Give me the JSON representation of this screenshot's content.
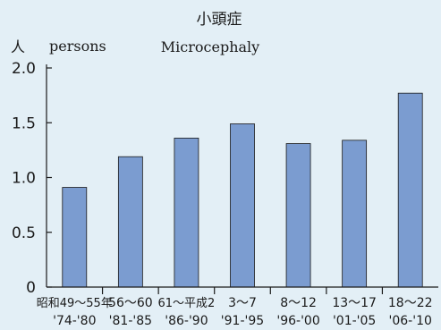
{
  "chart_data": {
    "type": "bar",
    "title": "小頭症",
    "subtitle": "Microcephaly",
    "ylabel_ja": "人",
    "ylabel_en": "persons",
    "ylim": [
      0,
      2.0
    ],
    "yticks": [
      "0",
      "0.5",
      "1.0",
      "1.5",
      "2.0"
    ],
    "ytick_values": [
      0,
      0.5,
      1.0,
      1.5,
      2.0
    ],
    "categories": [
      "昭和49～55年",
      "56～60",
      "61～平成2",
      "3～7",
      "8～12",
      "13～17",
      "18～22"
    ],
    "categories_western": [
      "'74-'80",
      "'81-'85",
      "'86-'90",
      "'91-'95",
      "'96-'00",
      "'01-'05",
      "'06-'10"
    ],
    "values": [
      0.91,
      1.19,
      1.36,
      1.49,
      1.31,
      1.34,
      1.77
    ],
    "grid": false,
    "bar_color": "#7b9cd0",
    "bar_edge_color": "#1a1a1a"
  },
  "colors": {
    "background": "#e3eff6",
    "axis": "#1a1a1a",
    "text": "#1a1a1a"
  }
}
